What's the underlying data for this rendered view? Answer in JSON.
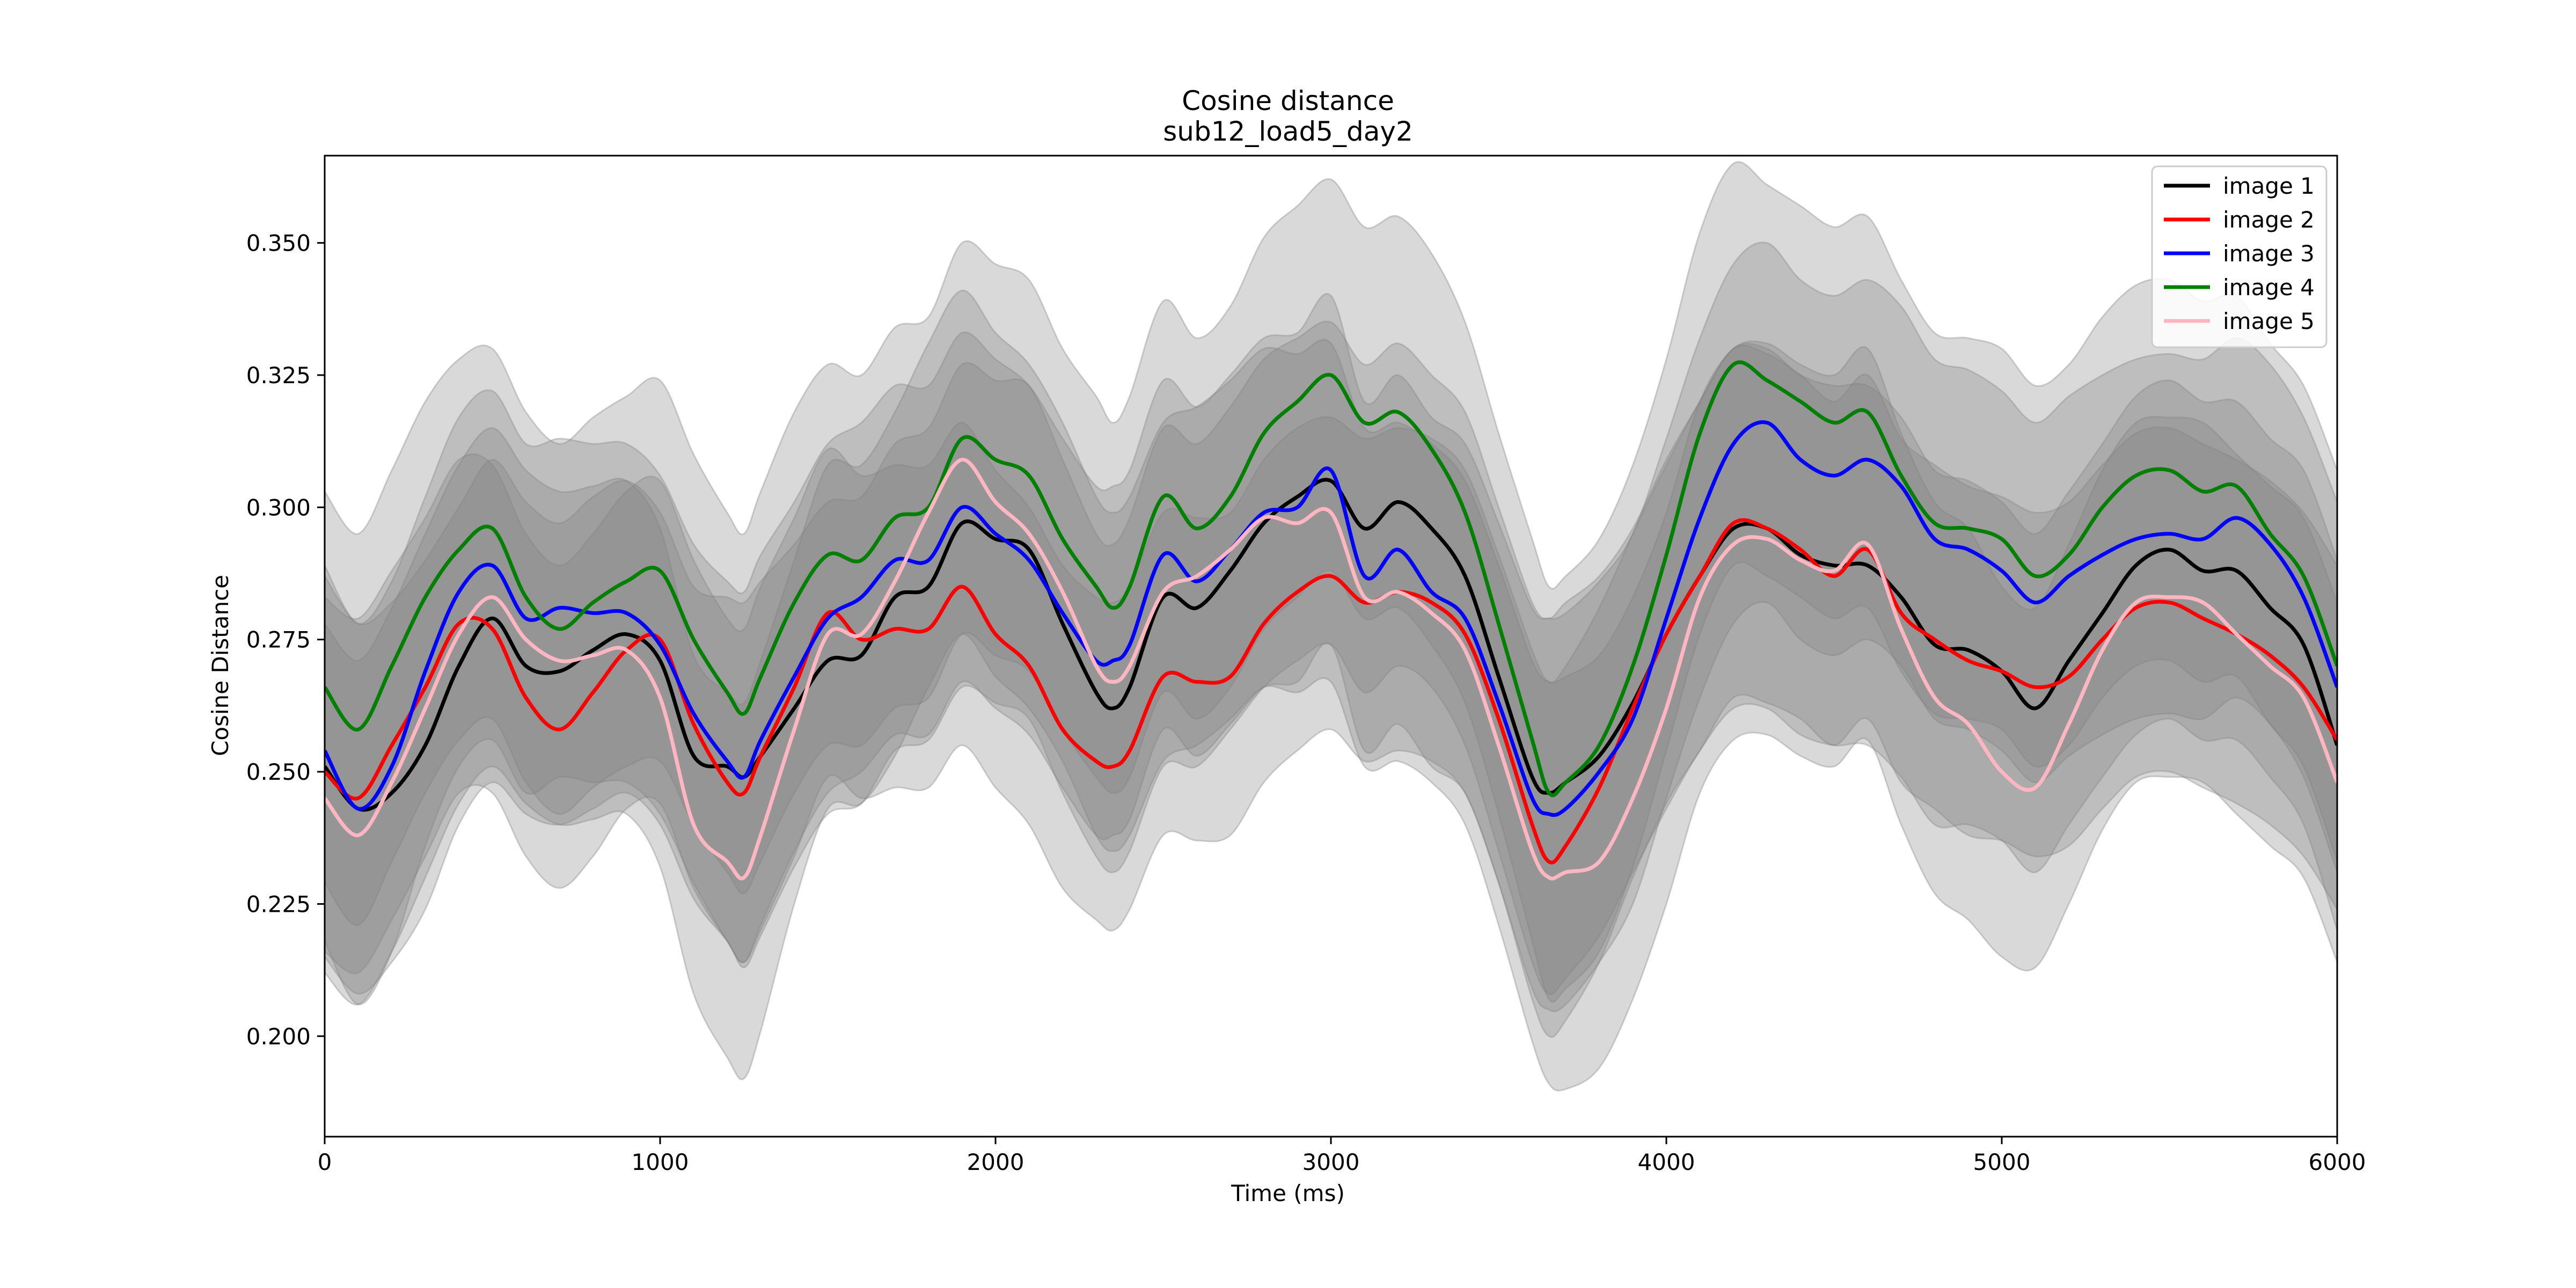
{
  "chart_data": {
    "type": "line",
    "title": "Cosine distance",
    "subtitle": "sub12_load5_day2",
    "xlabel": "Time (ms)",
    "ylabel": "Cosine Distance",
    "xlim": [
      0,
      6000
    ],
    "ylim": [
      0.181,
      0.3665
    ],
    "x_ticks": [
      0,
      1000,
      2000,
      3000,
      4000,
      5000,
      6000
    ],
    "y_ticks": [
      0.2,
      0.225,
      0.25,
      0.275,
      0.3,
      0.325,
      0.35
    ],
    "y_tick_labels": [
      "0.200",
      "0.225",
      "0.250",
      "0.275",
      "0.300",
      "0.325",
      "0.350"
    ],
    "grid": false,
    "legend_position": "top-right",
    "band_color": "#808080",
    "x": [
      0,
      100,
      200,
      300,
      400,
      500,
      600,
      700,
      800,
      900,
      1000,
      1100,
      1200,
      1250,
      1300,
      1400,
      1500,
      1600,
      1700,
      1800,
      1900,
      2000,
      2100,
      2200,
      2300,
      2350,
      2400,
      2500,
      2600,
      2700,
      2800,
      2900,
      3000,
      3100,
      3200,
      3300,
      3400,
      3500,
      3600,
      3650,
      3700,
      3800,
      3900,
      4000,
      4100,
      4200,
      4300,
      4400,
      4500,
      4600,
      4700,
      4800,
      4900,
      5000,
      5100,
      5200,
      5300,
      5400,
      5500,
      5600,
      5700,
      5800,
      5900,
      6000
    ],
    "series": [
      {
        "name": "image 1",
        "color": "#000000",
        "values": [
          0.251,
          0.243,
          0.246,
          0.255,
          0.27,
          0.279,
          0.27,
          0.269,
          0.273,
          0.276,
          0.271,
          0.253,
          0.251,
          0.249,
          0.253,
          0.262,
          0.271,
          0.272,
          0.283,
          0.285,
          0.297,
          0.294,
          0.292,
          0.278,
          0.265,
          0.262,
          0.266,
          0.283,
          0.281,
          0.288,
          0.297,
          0.302,
          0.305,
          0.296,
          0.301,
          0.296,
          0.287,
          0.268,
          0.249,
          0.246,
          0.248,
          0.253,
          0.263,
          0.276,
          0.287,
          0.296,
          0.296,
          0.291,
          0.289,
          0.289,
          0.283,
          0.274,
          0.273,
          0.269,
          0.262,
          0.271,
          0.28,
          0.289,
          0.292,
          0.288,
          0.288,
          0.281,
          0.274,
          0.255
        ],
        "lower": [
          0.215,
          0.208,
          0.214,
          0.224,
          0.24,
          0.248,
          0.242,
          0.24,
          0.243,
          0.246,
          0.24,
          0.226,
          0.218,
          0.213,
          0.219,
          0.232,
          0.242,
          0.244,
          0.254,
          0.256,
          0.266,
          0.263,
          0.26,
          0.246,
          0.234,
          0.231,
          0.235,
          0.251,
          0.251,
          0.258,
          0.266,
          0.271,
          0.274,
          0.265,
          0.27,
          0.266,
          0.255,
          0.235,
          0.214,
          0.208,
          0.211,
          0.219,
          0.231,
          0.243,
          0.254,
          0.262,
          0.262,
          0.257,
          0.255,
          0.255,
          0.249,
          0.24,
          0.24,
          0.237,
          0.231,
          0.24,
          0.249,
          0.257,
          0.26,
          0.256,
          0.256,
          0.249,
          0.24,
          0.22
        ],
        "upper": [
          0.287,
          0.278,
          0.282,
          0.29,
          0.3,
          0.309,
          0.301,
          0.297,
          0.302,
          0.305,
          0.299,
          0.285,
          0.283,
          0.282,
          0.286,
          0.293,
          0.301,
          0.302,
          0.312,
          0.315,
          0.327,
          0.324,
          0.323,
          0.309,
          0.295,
          0.293,
          0.298,
          0.315,
          0.312,
          0.319,
          0.328,
          0.332,
          0.335,
          0.327,
          0.331,
          0.325,
          0.318,
          0.3,
          0.282,
          0.279,
          0.282,
          0.287,
          0.296,
          0.309,
          0.32,
          0.33,
          0.33,
          0.325,
          0.323,
          0.323,
          0.317,
          0.307,
          0.305,
          0.301,
          0.295,
          0.303,
          0.312,
          0.321,
          0.324,
          0.32,
          0.32,
          0.313,
          0.307,
          0.29
        ]
      },
      {
        "name": "image 2",
        "color": "#ff0000",
        "values": [
          0.25,
          0.245,
          0.255,
          0.266,
          0.278,
          0.277,
          0.264,
          0.258,
          0.265,
          0.273,
          0.275,
          0.259,
          0.248,
          0.246,
          0.253,
          0.266,
          0.28,
          0.275,
          0.277,
          0.277,
          0.285,
          0.276,
          0.27,
          0.258,
          0.252,
          0.251,
          0.254,
          0.268,
          0.267,
          0.268,
          0.278,
          0.284,
          0.287,
          0.282,
          0.284,
          0.282,
          0.276,
          0.26,
          0.24,
          0.233,
          0.236,
          0.247,
          0.262,
          0.276,
          0.287,
          0.297,
          0.296,
          0.292,
          0.287,
          0.292,
          0.28,
          0.275,
          0.271,
          0.269,
          0.266,
          0.268,
          0.275,
          0.281,
          0.282,
          0.279,
          0.276,
          0.272,
          0.266,
          0.256
        ],
        "lower": [
          0.216,
          0.212,
          0.222,
          0.234,
          0.246,
          0.246,
          0.234,
          0.228,
          0.234,
          0.243,
          0.244,
          0.228,
          0.218,
          0.214,
          0.22,
          0.234,
          0.249,
          0.245,
          0.247,
          0.247,
          0.255,
          0.247,
          0.24,
          0.228,
          0.222,
          0.22,
          0.224,
          0.238,
          0.237,
          0.238,
          0.248,
          0.254,
          0.258,
          0.252,
          0.254,
          0.252,
          0.246,
          0.229,
          0.207,
          0.2,
          0.203,
          0.214,
          0.23,
          0.244,
          0.254,
          0.264,
          0.263,
          0.26,
          0.255,
          0.26,
          0.248,
          0.243,
          0.238,
          0.237,
          0.234,
          0.236,
          0.243,
          0.249,
          0.25,
          0.247,
          0.244,
          0.24,
          0.234,
          0.224
        ],
        "upper": [
          0.283,
          0.279,
          0.288,
          0.298,
          0.309,
          0.308,
          0.295,
          0.289,
          0.295,
          0.303,
          0.305,
          0.29,
          0.279,
          0.277,
          0.285,
          0.298,
          0.311,
          0.306,
          0.308,
          0.308,
          0.316,
          0.307,
          0.3,
          0.289,
          0.283,
          0.282,
          0.285,
          0.299,
          0.298,
          0.299,
          0.309,
          0.315,
          0.317,
          0.313,
          0.315,
          0.313,
          0.307,
          0.291,
          0.273,
          0.267,
          0.27,
          0.281,
          0.295,
          0.308,
          0.32,
          0.33,
          0.329,
          0.325,
          0.32,
          0.325,
          0.313,
          0.308,
          0.304,
          0.302,
          0.299,
          0.301,
          0.308,
          0.314,
          0.315,
          0.312,
          0.309,
          0.305,
          0.299,
          0.289
        ]
      },
      {
        "name": "image 3",
        "color": "#0000ff",
        "values": [
          0.254,
          0.243,
          0.251,
          0.269,
          0.284,
          0.289,
          0.279,
          0.281,
          0.28,
          0.28,
          0.274,
          0.261,
          0.252,
          0.249,
          0.256,
          0.268,
          0.279,
          0.283,
          0.29,
          0.29,
          0.3,
          0.295,
          0.29,
          0.28,
          0.271,
          0.271,
          0.274,
          0.291,
          0.286,
          0.292,
          0.299,
          0.3,
          0.307,
          0.287,
          0.292,
          0.284,
          0.279,
          0.263,
          0.245,
          0.242,
          0.243,
          0.25,
          0.26,
          0.279,
          0.298,
          0.312,
          0.316,
          0.309,
          0.306,
          0.309,
          0.304,
          0.294,
          0.292,
          0.288,
          0.282,
          0.287,
          0.291,
          0.294,
          0.295,
          0.294,
          0.298,
          0.293,
          0.283,
          0.266
        ],
        "lower": [
          0.218,
          0.206,
          0.216,
          0.236,
          0.251,
          0.256,
          0.246,
          0.249,
          0.248,
          0.248,
          0.242,
          0.229,
          0.218,
          0.214,
          0.221,
          0.235,
          0.246,
          0.25,
          0.257,
          0.257,
          0.267,
          0.262,
          0.257,
          0.247,
          0.238,
          0.238,
          0.241,
          0.258,
          0.253,
          0.259,
          0.266,
          0.267,
          0.274,
          0.254,
          0.259,
          0.251,
          0.246,
          0.229,
          0.209,
          0.205,
          0.206,
          0.214,
          0.225,
          0.245,
          0.264,
          0.278,
          0.282,
          0.275,
          0.272,
          0.275,
          0.27,
          0.26,
          0.258,
          0.254,
          0.248,
          0.253,
          0.257,
          0.26,
          0.261,
          0.26,
          0.264,
          0.259,
          0.249,
          0.231
        ],
        "upper": [
          0.289,
          0.278,
          0.286,
          0.302,
          0.317,
          0.322,
          0.312,
          0.313,
          0.312,
          0.312,
          0.306,
          0.293,
          0.286,
          0.284,
          0.291,
          0.301,
          0.312,
          0.316,
          0.323,
          0.323,
          0.333,
          0.328,
          0.323,
          0.313,
          0.304,
          0.304,
          0.307,
          0.324,
          0.319,
          0.325,
          0.332,
          0.333,
          0.34,
          0.32,
          0.325,
          0.317,
          0.312,
          0.297,
          0.281,
          0.279,
          0.28,
          0.286,
          0.295,
          0.313,
          0.332,
          0.346,
          0.35,
          0.343,
          0.34,
          0.343,
          0.338,
          0.328,
          0.326,
          0.322,
          0.316,
          0.321,
          0.325,
          0.328,
          0.329,
          0.328,
          0.332,
          0.327,
          0.317,
          0.301
        ]
      },
      {
        "name": "image 4",
        "color": "#008000",
        "values": [
          0.266,
          0.258,
          0.27,
          0.283,
          0.292,
          0.296,
          0.283,
          0.277,
          0.282,
          0.286,
          0.288,
          0.275,
          0.265,
          0.261,
          0.268,
          0.282,
          0.291,
          0.29,
          0.298,
          0.3,
          0.313,
          0.309,
          0.306,
          0.294,
          0.285,
          0.281,
          0.285,
          0.302,
          0.296,
          0.302,
          0.314,
          0.32,
          0.325,
          0.316,
          0.318,
          0.311,
          0.299,
          0.278,
          0.256,
          0.246,
          0.248,
          0.255,
          0.27,
          0.291,
          0.314,
          0.327,
          0.324,
          0.32,
          0.316,
          0.318,
          0.306,
          0.297,
          0.296,
          0.294,
          0.287,
          0.291,
          0.3,
          0.306,
          0.307,
          0.303,
          0.304,
          0.295,
          0.287,
          0.27
        ],
        "lower": [
          0.229,
          0.221,
          0.233,
          0.246,
          0.256,
          0.26,
          0.248,
          0.242,
          0.247,
          0.251,
          0.252,
          0.24,
          0.231,
          0.227,
          0.233,
          0.246,
          0.255,
          0.255,
          0.262,
          0.264,
          0.276,
          0.272,
          0.269,
          0.258,
          0.249,
          0.246,
          0.249,
          0.265,
          0.26,
          0.266,
          0.277,
          0.283,
          0.288,
          0.279,
          0.281,
          0.274,
          0.263,
          0.242,
          0.218,
          0.207,
          0.209,
          0.216,
          0.232,
          0.254,
          0.276,
          0.289,
          0.287,
          0.283,
          0.279,
          0.281,
          0.269,
          0.261,
          0.26,
          0.258,
          0.251,
          0.255,
          0.264,
          0.27,
          0.271,
          0.267,
          0.268,
          0.259,
          0.251,
          0.233
        ],
        "upper": [
          0.303,
          0.295,
          0.307,
          0.32,
          0.328,
          0.33,
          0.318,
          0.312,
          0.317,
          0.321,
          0.324,
          0.31,
          0.299,
          0.295,
          0.303,
          0.318,
          0.327,
          0.325,
          0.334,
          0.336,
          0.35,
          0.346,
          0.343,
          0.33,
          0.321,
          0.316,
          0.321,
          0.339,
          0.332,
          0.338,
          0.351,
          0.357,
          0.362,
          0.353,
          0.355,
          0.348,
          0.335,
          0.314,
          0.294,
          0.285,
          0.287,
          0.294,
          0.308,
          0.328,
          0.352,
          0.365,
          0.361,
          0.357,
          0.353,
          0.355,
          0.343,
          0.333,
          0.332,
          0.33,
          0.323,
          0.327,
          0.336,
          0.342,
          0.343,
          0.339,
          0.34,
          0.331,
          0.323,
          0.307
        ]
      },
      {
        "name": "image 5",
        "color": "#ffb6c1",
        "values": [
          0.245,
          0.238,
          0.248,
          0.262,
          0.276,
          0.283,
          0.275,
          0.271,
          0.272,
          0.273,
          0.264,
          0.24,
          0.233,
          0.23,
          0.238,
          0.258,
          0.276,
          0.276,
          0.286,
          0.299,
          0.309,
          0.301,
          0.295,
          0.284,
          0.27,
          0.267,
          0.27,
          0.284,
          0.287,
          0.292,
          0.298,
          0.297,
          0.299,
          0.283,
          0.284,
          0.28,
          0.273,
          0.255,
          0.235,
          0.23,
          0.231,
          0.233,
          0.245,
          0.262,
          0.283,
          0.293,
          0.294,
          0.29,
          0.288,
          0.293,
          0.277,
          0.264,
          0.259,
          0.25,
          0.247,
          0.259,
          0.273,
          0.282,
          0.283,
          0.282,
          0.276,
          0.27,
          0.264,
          0.248
        ],
        "lower": [
          0.212,
          0.206,
          0.216,
          0.23,
          0.244,
          0.251,
          0.244,
          0.24,
          0.241,
          0.242,
          0.232,
          0.208,
          0.196,
          0.192,
          0.201,
          0.225,
          0.243,
          0.244,
          0.253,
          0.266,
          0.276,
          0.268,
          0.262,
          0.252,
          0.238,
          0.235,
          0.238,
          0.252,
          0.255,
          0.26,
          0.266,
          0.265,
          0.267,
          0.251,
          0.252,
          0.248,
          0.24,
          0.221,
          0.199,
          0.191,
          0.19,
          0.194,
          0.207,
          0.225,
          0.246,
          0.256,
          0.257,
          0.253,
          0.251,
          0.256,
          0.24,
          0.227,
          0.222,
          0.215,
          0.213,
          0.225,
          0.239,
          0.248,
          0.249,
          0.248,
          0.242,
          0.236,
          0.23,
          0.214
        ],
        "upper": [
          0.278,
          0.271,
          0.281,
          0.295,
          0.308,
          0.315,
          0.307,
          0.303,
          0.304,
          0.305,
          0.296,
          0.272,
          0.265,
          0.263,
          0.271,
          0.29,
          0.308,
          0.308,
          0.318,
          0.331,
          0.341,
          0.333,
          0.327,
          0.316,
          0.302,
          0.299,
          0.302,
          0.316,
          0.319,
          0.324,
          0.33,
          0.329,
          0.331,
          0.315,
          0.316,
          0.312,
          0.305,
          0.289,
          0.271,
          0.267,
          0.268,
          0.272,
          0.283,
          0.299,
          0.32,
          0.33,
          0.331,
          0.327,
          0.325,
          0.33,
          0.314,
          0.301,
          0.296,
          0.285,
          0.281,
          0.293,
          0.307,
          0.316,
          0.317,
          0.316,
          0.31,
          0.304,
          0.298,
          0.282
        ]
      }
    ]
  }
}
